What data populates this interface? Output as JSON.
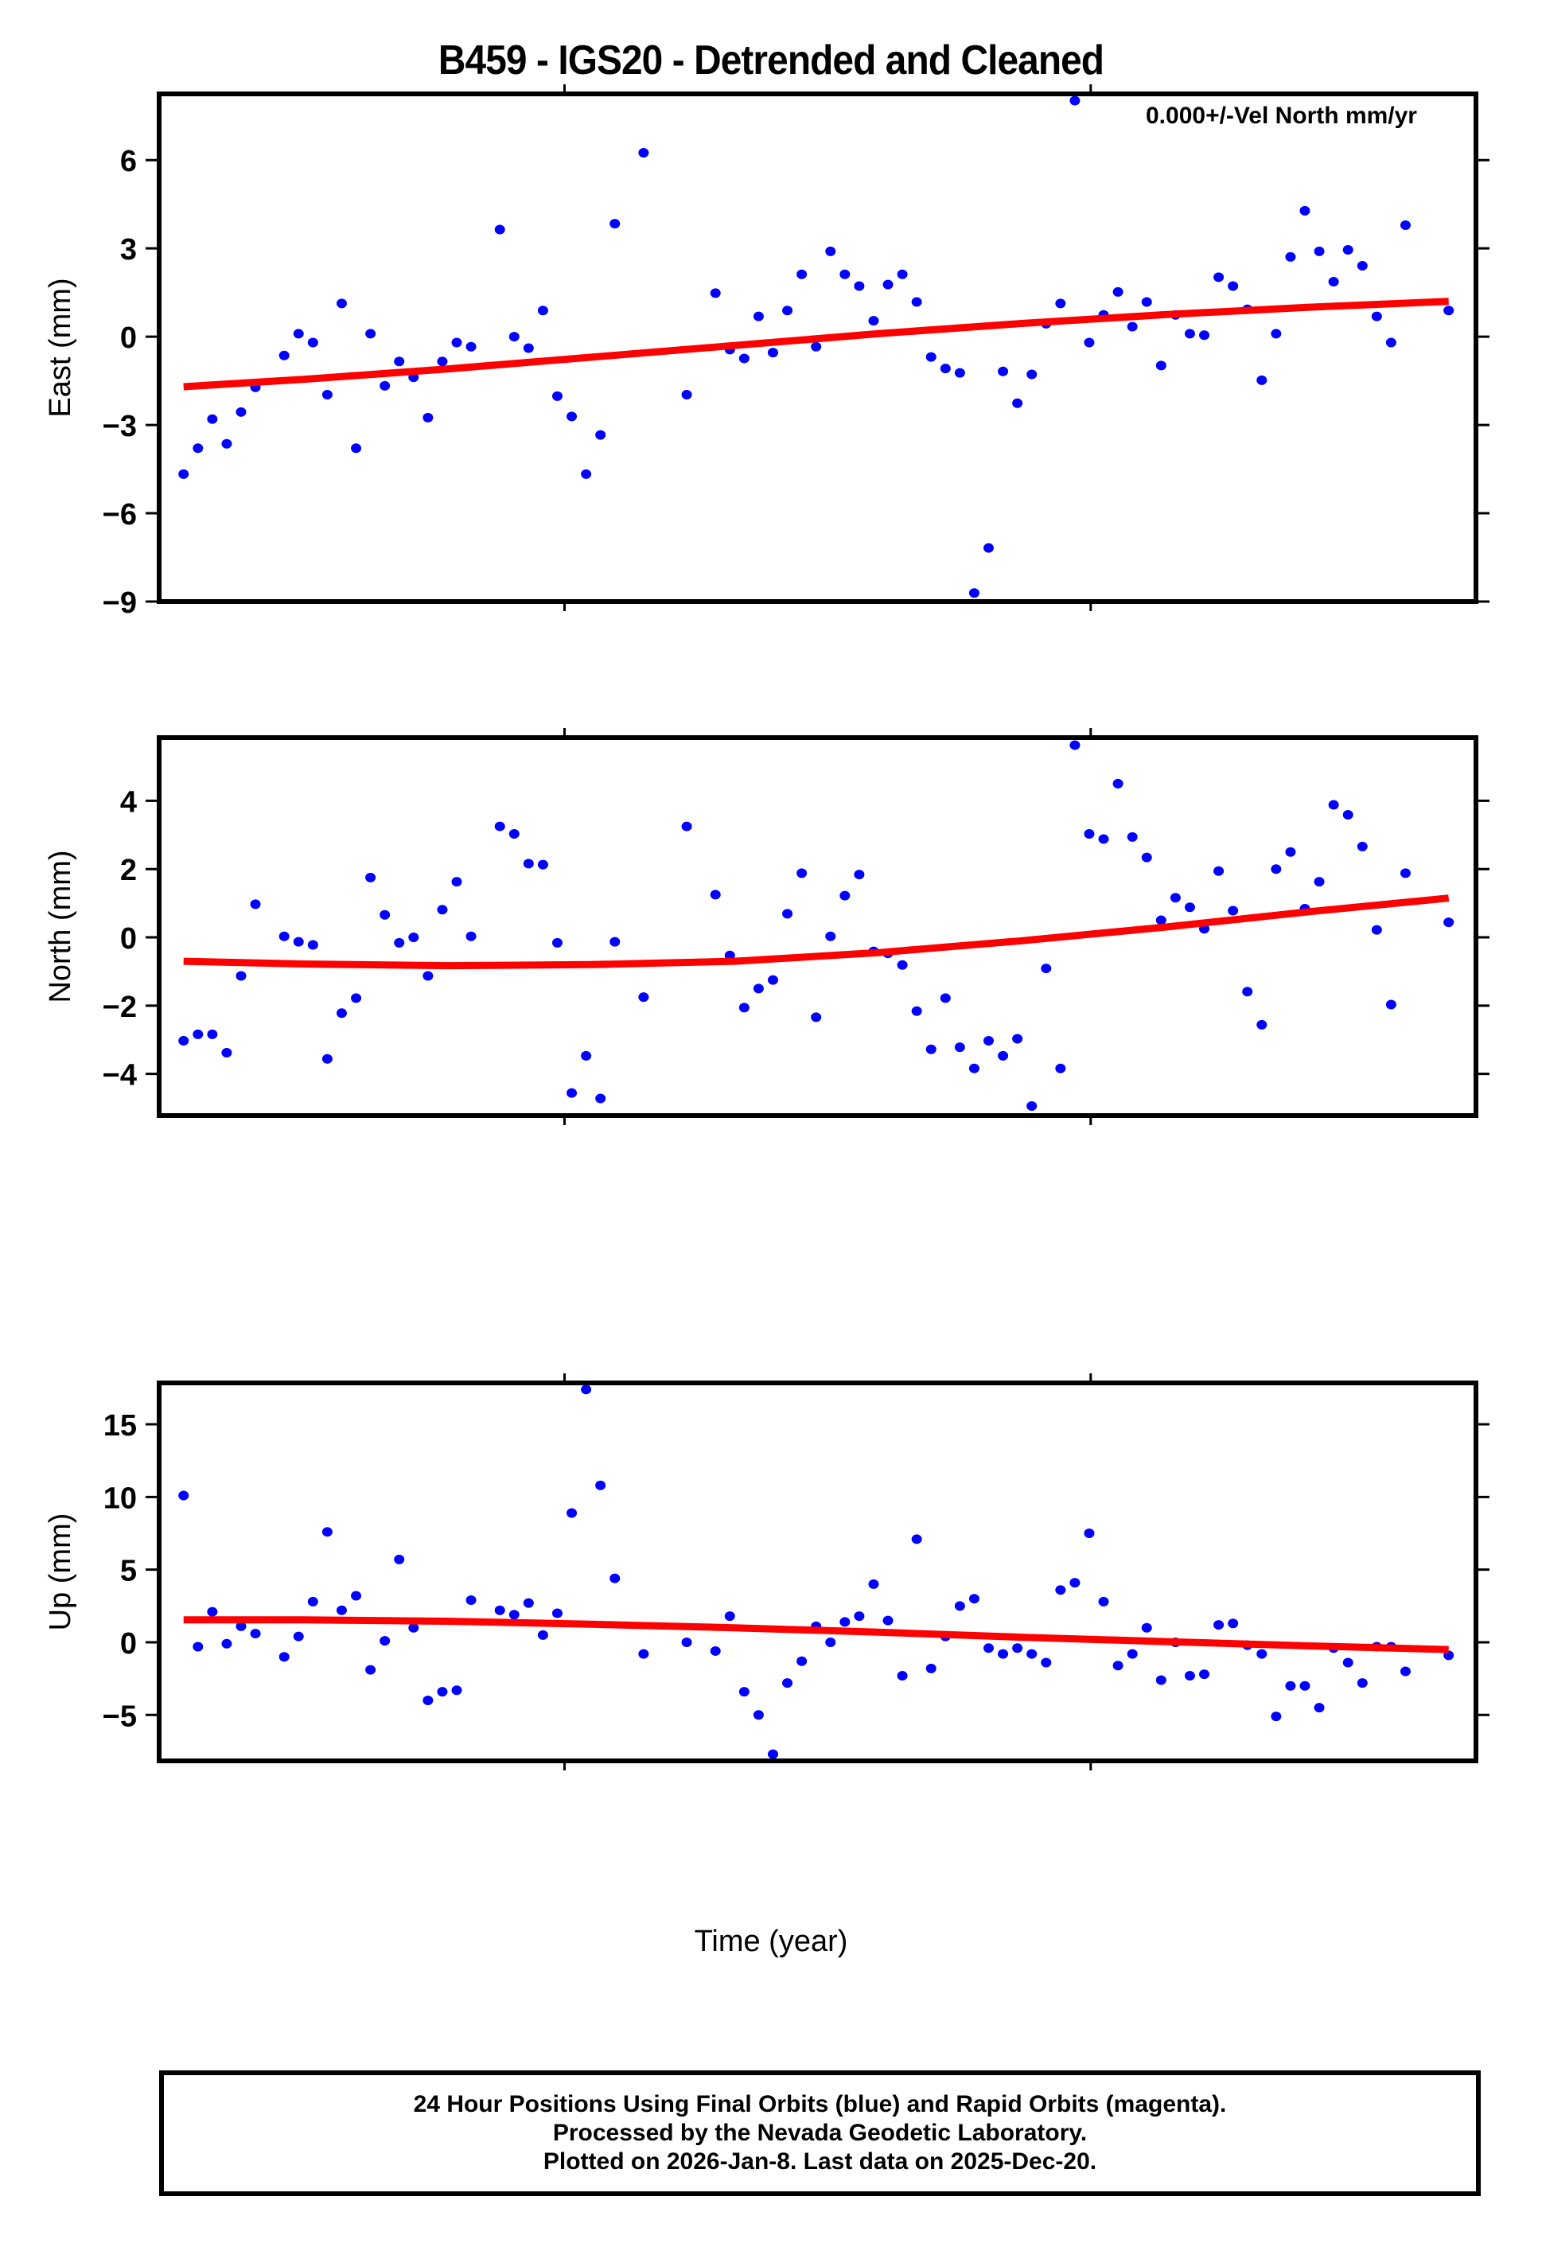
{
  "title": "B459 - IGS20 - Detrended and Cleaned",
  "xlabel": "Time (year)",
  "footer": {
    "line1": "24 Hour Positions Using Final Orbits (blue) and Rapid Orbits (magenta).",
    "line2": "Processed by the Nevada Geodetic Laboratory.",
    "line3": "Plotted on 2026-Jan-8. Last data on 2025-Dec-20."
  },
  "colors": {
    "points": "#0000ff",
    "fit": "#ff0000",
    "frame": "#000000"
  },
  "chart_data": [
    {
      "type": "scatter",
      "title": "B459 - IGS20 - Detrended and Cleaned",
      "panel": "East",
      "ylabel": "East (mm)",
      "xlabel": "Time (year)",
      "annotation": "0.000+/-Vel North mm/yr",
      "ylim": [
        -9,
        8.25
      ],
      "yticks": [
        -9,
        -6,
        -3,
        0,
        3,
        6
      ],
      "xlim": [
        0,
        916
      ],
      "xticks": [
        282,
        648
      ],
      "grid": false,
      "x": [
        17,
        27,
        37,
        47,
        57,
        67,
        87,
        97,
        107,
        117,
        127,
        137,
        147,
        157,
        167,
        177,
        187,
        197,
        207,
        217,
        237,
        247,
        257,
        267,
        277,
        287,
        297,
        307,
        317,
        337,
        367,
        387,
        397,
        407,
        417,
        427,
        437,
        447,
        457,
        467,
        477,
        487,
        497,
        507,
        517,
        527,
        537,
        547,
        557,
        567,
        577,
        587,
        597,
        607,
        617,
        627,
        637,
        647,
        657,
        667,
        677,
        687,
        697,
        707,
        717,
        727,
        737,
        747,
        757,
        767,
        777,
        787,
        797,
        807,
        817,
        827,
        837,
        847,
        857,
        867,
        897
      ],
      "series": [
        {
          "name": "Final Orbits",
          "values": [
            -4.67,
            -3.79,
            -2.8,
            -3.64,
            -2.56,
            -1.72,
            -0.64,
            0.1,
            -0.2,
            -1.97,
            1.13,
            -3.79,
            0.1,
            -1.67,
            -0.84,
            -1.38,
            -2.75,
            -0.84,
            -0.2,
            -0.34,
            3.64,
            0.0,
            -0.39,
            0.89,
            -2.02,
            -2.71,
            -4.67,
            -3.34,
            3.84,
            6.25,
            -1.97,
            1.48,
            -0.44,
            -0.74,
            0.69,
            -0.54,
            0.89,
            2.12,
            -0.34,
            2.9,
            2.12,
            1.72,
            0.54,
            1.77,
            2.12,
            1.18,
            -0.69,
            -1.08,
            -1.23,
            -8.71,
            -7.18,
            -1.18,
            -2.26,
            -1.28,
            0.44,
            1.13,
            8.02,
            -0.2,
            0.74,
            1.52,
            0.34,
            1.18,
            -0.98,
            0.74,
            0.1,
            0.05,
            2.02,
            1.72,
            0.93,
            -1.48,
            0.1,
            2.71,
            4.28,
            2.9,
            1.87,
            2.95,
            2.41,
            0.69,
            -0.2,
            3.79,
            0.89
          ]
        },
        {
          "name": "Fit",
          "x": [
            17,
            100,
            200,
            300,
            400,
            500,
            600,
            700,
            800,
            897
          ],
          "values": [
            -1.7,
            -1.45,
            -1.1,
            -0.7,
            -0.3,
            0.1,
            0.45,
            0.75,
            1.0,
            1.2
          ]
        }
      ]
    },
    {
      "type": "scatter",
      "panel": "North",
      "ylabel": "North (mm)",
      "ylim": [
        -5.22,
        5.85
      ],
      "yticks": [
        -4,
        -2,
        0,
        2,
        4
      ],
      "xlim": [
        0,
        916
      ],
      "xticks": [
        282,
        648
      ],
      "grid": false,
      "x": [
        17,
        27,
        37,
        47,
        57,
        67,
        87,
        97,
        107,
        117,
        127,
        137,
        147,
        157,
        167,
        177,
        187,
        197,
        207,
        217,
        237,
        247,
        257,
        267,
        277,
        287,
        297,
        307,
        317,
        337,
        367,
        387,
        397,
        407,
        417,
        427,
        437,
        447,
        457,
        467,
        477,
        487,
        497,
        507,
        517,
        527,
        537,
        547,
        557,
        567,
        577,
        587,
        597,
        607,
        617,
        627,
        637,
        647,
        657,
        667,
        677,
        687,
        697,
        707,
        717,
        727,
        737,
        747,
        757,
        767,
        777,
        787,
        797,
        807,
        817,
        827,
        837,
        847,
        857,
        867,
        897
      ],
      "series": [
        {
          "name": "Final Orbits",
          "values": [
            -3.03,
            -2.84,
            -2.84,
            -3.38,
            -1.13,
            0.97,
            0.03,
            -0.13,
            -0.22,
            -3.56,
            -2.22,
            -1.78,
            1.75,
            0.66,
            -0.16,
            0.0,
            -1.13,
            0.81,
            1.63,
            0.03,
            3.25,
            3.03,
            2.16,
            2.13,
            -0.16,
            -4.56,
            -3.47,
            -4.72,
            -0.13,
            -1.75,
            3.25,
            1.25,
            -0.53,
            -2.06,
            -1.5,
            -1.25,
            0.69,
            1.88,
            -2.34,
            0.03,
            1.22,
            1.84,
            -0.41,
            -0.47,
            -0.81,
            -2.16,
            -3.28,
            -1.78,
            -3.22,
            -3.84,
            -3.03,
            -3.47,
            -2.97,
            -4.94,
            -0.91,
            -3.84,
            5.63,
            3.03,
            2.88,
            4.5,
            2.94,
            2.34,
            0.5,
            1.16,
            0.88,
            0.25,
            1.94,
            0.78,
            -1.59,
            -2.56,
            2.0,
            2.5,
            0.84,
            1.63,
            3.88,
            3.59,
            2.66,
            0.22,
            -1.97,
            1.88,
            0.44
          ]
        },
        {
          "name": "Fit",
          "x": [
            17,
            100,
            200,
            300,
            400,
            500,
            600,
            700,
            800,
            897
          ],
          "values": [
            -0.7,
            -0.78,
            -0.83,
            -0.8,
            -0.7,
            -0.45,
            -0.1,
            0.3,
            0.75,
            1.15
          ]
        }
      ]
    },
    {
      "type": "scatter",
      "panel": "Up",
      "ylabel": "Up (mm)",
      "ylim": [
        -8.16,
        17.85
      ],
      "yticks": [
        -5,
        0,
        5,
        10,
        15
      ],
      "xlim": [
        0,
        916
      ],
      "xticks": [
        282,
        648
      ],
      "grid": false,
      "x": [
        17,
        27,
        37,
        47,
        57,
        67,
        87,
        97,
        107,
        117,
        127,
        137,
        147,
        157,
        167,
        177,
        187,
        197,
        207,
        217,
        237,
        247,
        257,
        267,
        277,
        287,
        297,
        307,
        317,
        337,
        367,
        387,
        397,
        407,
        417,
        427,
        437,
        447,
        457,
        467,
        477,
        487,
        497,
        507,
        517,
        527,
        537,
        547,
        557,
        567,
        577,
        587,
        597,
        607,
        617,
        627,
        637,
        647,
        657,
        667,
        677,
        687,
        697,
        707,
        717,
        727,
        737,
        747,
        757,
        767,
        777,
        787,
        797,
        807,
        817,
        827,
        837,
        847,
        857,
        867,
        897
      ],
      "series": [
        {
          "name": "Final Orbits",
          "values": [
            10.1,
            -0.3,
            2.1,
            -0.1,
            1.1,
            0.6,
            -1.0,
            0.4,
            2.8,
            7.6,
            2.2,
            3.2,
            -1.9,
            0.1,
            5.7,
            1.0,
            -4.0,
            -3.4,
            -3.3,
            2.9,
            2.2,
            1.9,
            2.7,
            0.5,
            2.0,
            8.9,
            17.4,
            10.8,
            4.4,
            -0.8,
            0.0,
            -0.6,
            1.8,
            -3.4,
            -5.0,
            -7.7,
            -2.8,
            -1.3,
            1.1,
            0.0,
            1.4,
            1.8,
            4.0,
            1.5,
            -2.3,
            7.1,
            -1.8,
            0.4,
            2.5,
            3.0,
            -0.4,
            -0.8,
            -0.4,
            -0.8,
            -1.4,
            3.6,
            4.1,
            7.5,
            2.8,
            -1.6,
            -0.8,
            1.0,
            -2.6,
            0.0,
            -2.3,
            -2.2,
            1.2,
            1.3,
            -0.2,
            -0.8,
            -5.1,
            -3.0,
            -3.0,
            -4.5,
            -0.4,
            -1.4,
            -2.8,
            -0.3,
            -0.3,
            -2.0,
            -0.9
          ]
        },
        {
          "name": "Fit",
          "x": [
            17,
            100,
            200,
            300,
            400,
            500,
            600,
            700,
            800,
            897
          ],
          "values": [
            1.55,
            1.55,
            1.45,
            1.25,
            1.0,
            0.7,
            0.35,
            0.05,
            -0.25,
            -0.5
          ]
        }
      ]
    }
  ]
}
